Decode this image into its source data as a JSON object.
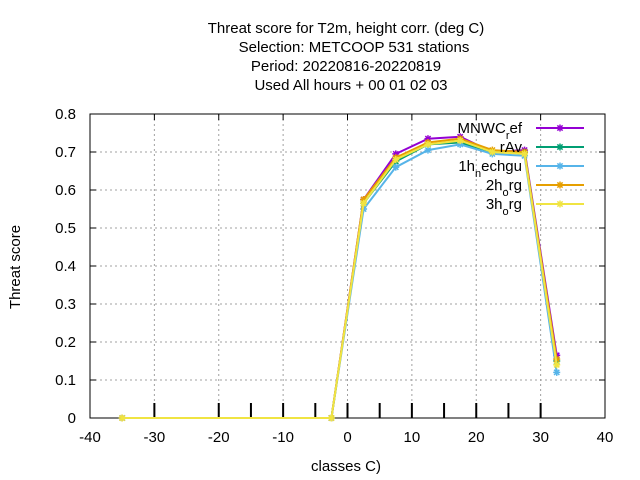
{
  "chart_data": {
    "type": "line",
    "title_lines": [
      "Threat score  for T2m, height corr. (deg C)",
      "Selection: METCOOP    531 stations",
      "Period: 20220816-20220819",
      "Used  All hours  + 00 01 02 03"
    ],
    "xlabel": "classes C)",
    "ylabel": "Threat score",
    "xlim": [
      -40,
      40
    ],
    "ylim": [
      0,
      0.8
    ],
    "x_ticks": [
      -40,
      -30,
      -20,
      -10,
      0,
      10,
      20,
      30,
      40
    ],
    "x_tick_labels": [
      "-40",
      "-30",
      "-20",
      "-10",
      "0",
      "10",
      "20",
      "30",
      "40"
    ],
    "y_ticks": [
      0,
      0.1,
      0.2,
      0.3,
      0.4,
      0.5,
      0.6,
      0.7,
      0.8
    ],
    "y_tick_labels": [
      "0",
      "0.1",
      "0.2",
      "0.3",
      "0.4",
      "0.5",
      "0.6",
      "0.7",
      "0.8"
    ],
    "class_markers_x": [
      -30,
      -20,
      -15,
      -10,
      -5,
      0,
      5,
      10,
      15,
      20,
      25,
      30
    ],
    "grid": true,
    "legend_position": "top-right",
    "series": [
      {
        "name": "MNWC_ref",
        "legend_main": "MNWC",
        "legend_sub": "r",
        "legend_tail": "ef",
        "color": "#9400d3",
        "x": [
          -35,
          -2.5,
          2.5,
          7.5,
          12.5,
          17.5,
          22.5,
          27.5,
          32.5
        ],
        "y": [
          0,
          0,
          0.575,
          0.695,
          0.735,
          0.74,
          0.7,
          0.705,
          0.165
        ]
      },
      {
        "name": "",
        "legend_main": "",
        "legend_sub": "",
        "legend_tail": "rAv",
        "color": "#009e73",
        "x": [
          -35,
          -2.5,
          2.5,
          7.5,
          12.5,
          17.5,
          22.5,
          27.5,
          32.5
        ],
        "y": [
          0,
          0,
          0.565,
          0.675,
          0.72,
          0.725,
          0.7,
          0.7,
          0.15
        ]
      },
      {
        "name": "1h_nechgu",
        "legend_main": "1h",
        "legend_sub": "n",
        "legend_tail": "echgu",
        "color": "#56b4e9",
        "x": [
          -35,
          -2.5,
          2.5,
          7.5,
          12.5,
          17.5,
          22.5,
          27.5,
          32.5
        ],
        "y": [
          0,
          0,
          0.55,
          0.66,
          0.705,
          0.72,
          0.695,
          0.69,
          0.12
        ]
      },
      {
        "name": "2h_org",
        "legend_main": "2h",
        "legend_sub": "o",
        "legend_tail": "rg",
        "color": "#e69f00",
        "x": [
          -35,
          -2.5,
          2.5,
          7.5,
          12.5,
          17.5,
          22.5,
          27.5,
          32.5
        ],
        "y": [
          0,
          0,
          0.575,
          0.685,
          0.725,
          0.735,
          0.705,
          0.7,
          0.155
        ]
      },
      {
        "name": "3h_org",
        "legend_main": "3h",
        "legend_sub": "o",
        "legend_tail": "rg",
        "color": "#f0e442",
        "x": [
          -35,
          -2.5,
          2.5,
          7.5,
          12.5,
          17.5,
          22.5,
          27.5,
          32.5
        ],
        "y": [
          0,
          0,
          0.565,
          0.68,
          0.72,
          0.73,
          0.7,
          0.695,
          0.14
        ]
      }
    ]
  }
}
